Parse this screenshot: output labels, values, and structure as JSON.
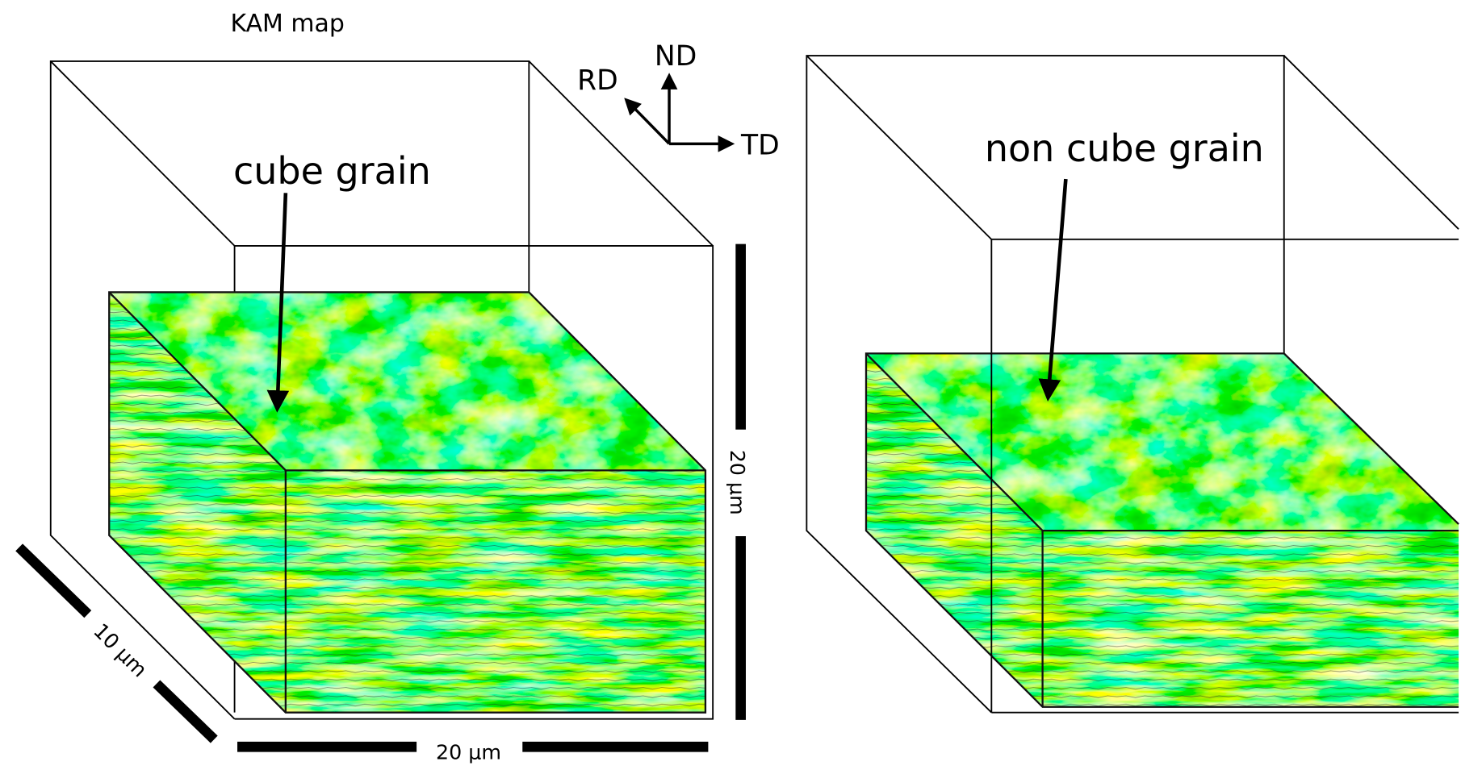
{
  "title": "KAM map",
  "axes": {
    "nd": "ND",
    "rd": "RD",
    "td": "TD"
  },
  "panels": [
    {
      "label": "cube grain",
      "scale_bars": {
        "vertical": "20 μm",
        "diagonal": "10 μm",
        "horizontal": "20 μm"
      }
    },
    {
      "label": "non cube grain"
    }
  ]
}
